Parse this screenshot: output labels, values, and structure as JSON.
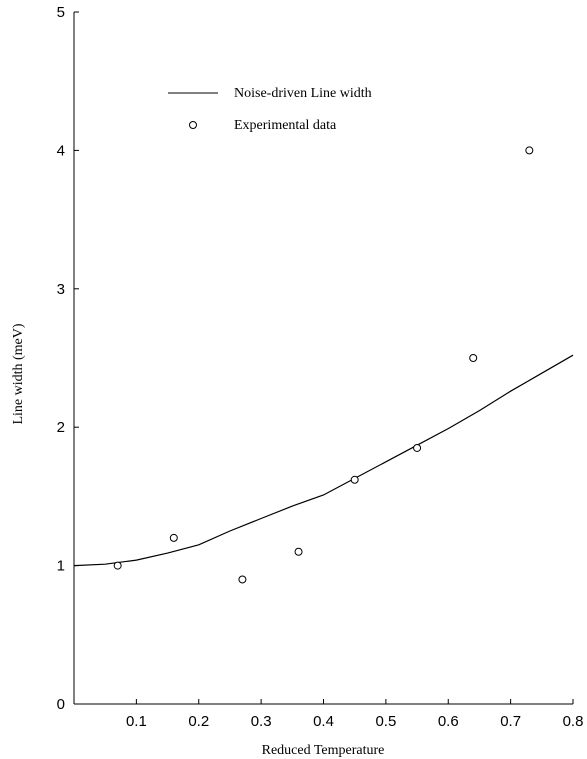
{
  "chart_data": {
    "type": "line",
    "title": "",
    "xlabel": "Reduced Temperature",
    "ylabel": "Line width (meV)",
    "xlim": [
      0,
      0.8
    ],
    "ylim": [
      0,
      5
    ],
    "x_ticks": [
      0.1,
      0.2,
      0.3,
      0.4,
      0.5,
      0.6,
      0.7,
      0.8
    ],
    "x_tick_labels": [
      "0.1",
      "0.2",
      "0.3",
      "0.4",
      "0.5",
      "0.6",
      "0.7",
      "0.8"
    ],
    "y_ticks": [
      0,
      1,
      2,
      3,
      4,
      5
    ],
    "y_tick_labels": [
      "0",
      "1",
      "2",
      "3",
      "4",
      "5"
    ],
    "grid": false,
    "legend_position": "top-left",
    "series": [
      {
        "name": "Noise-driven Line width",
        "kind": "line",
        "color": "#000000",
        "x": [
          0,
          0.05,
          0.1,
          0.15,
          0.2,
          0.25,
          0.3,
          0.35,
          0.4,
          0.45,
          0.5,
          0.55,
          0.6,
          0.65,
          0.7,
          0.75,
          0.8
        ],
        "y": [
          1.0,
          1.01,
          1.04,
          1.09,
          1.15,
          1.25,
          1.34,
          1.43,
          1.51,
          1.63,
          1.75,
          1.87,
          1.99,
          2.12,
          2.26,
          2.39,
          2.52
        ]
      },
      {
        "name": "Experimental data",
        "kind": "scatter",
        "marker": "open-circle",
        "color": "#000000",
        "x": [
          0.07,
          0.16,
          0.27,
          0.36,
          0.45,
          0.55,
          0.64,
          0.73
        ],
        "y": [
          1.0,
          1.2,
          0.9,
          1.1,
          1.62,
          1.85,
          2.5,
          4.0
        ]
      }
    ]
  }
}
